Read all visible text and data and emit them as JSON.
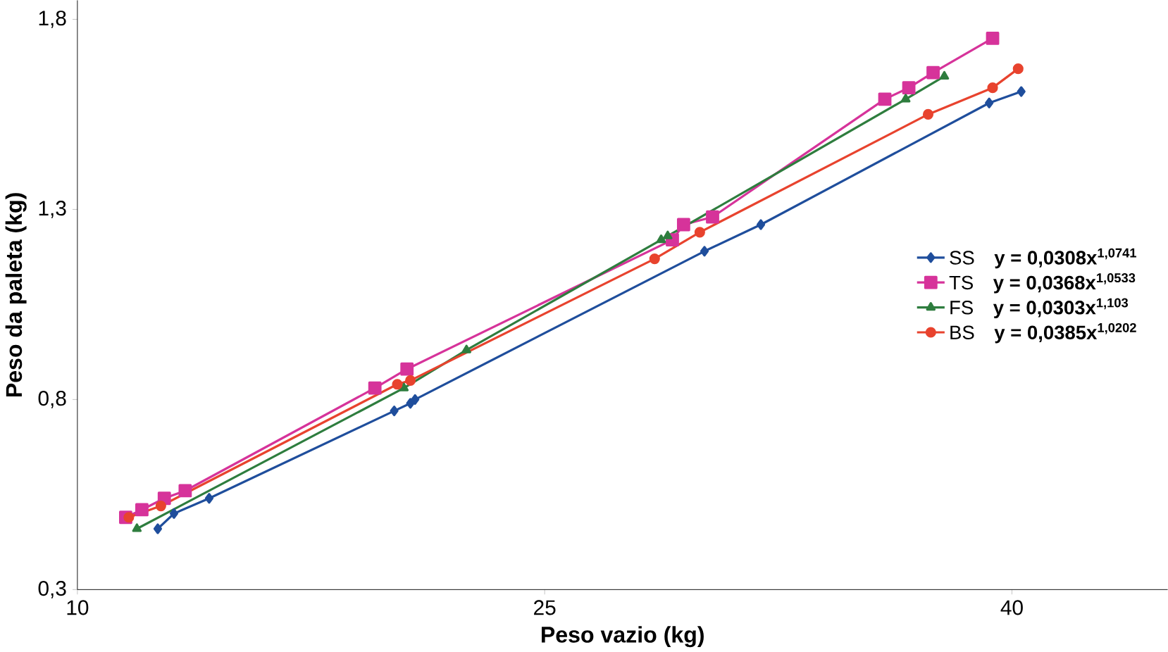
{
  "chart_data": {
    "type": "line",
    "xlabel": "Peso vazio (kg)",
    "ylabel": "Peso da paleta (kg)",
    "xlim": [
      10,
      45
    ],
    "ylim": [
      0.3,
      1.85
    ],
    "xticks": [
      10,
      25,
      40
    ],
    "yticks": [
      {
        "value": 0.3,
        "label": "0,3"
      },
      {
        "value": 0.8,
        "label": "0,8"
      },
      {
        "value": 1.3,
        "label": "1,3"
      },
      {
        "value": 1.8,
        "label": "1,8"
      }
    ],
    "grid": false,
    "legend": "right",
    "annotations": [
      "y = 0,0308x$^{1,0741}$",
      "y = 0,0368x$^{1,0533}$",
      "y = 0,0303x$^{1,103}$",
      "y = 0,0385x$^{1,0202}$"
    ],
    "series": [
      {
        "name": "SS",
        "color": "#1f4e9c",
        "marker": "diamond",
        "x": [
          12.58,
          13.1,
          14.23,
          20.17,
          20.69,
          20.84,
          30.13,
          31.94,
          39.27,
          40.3
        ],
        "values": [
          0.46,
          0.5,
          0.54,
          0.77,
          0.79,
          0.8,
          1.19,
          1.26,
          1.58,
          1.61
        ]
      },
      {
        "name": "TS",
        "color": "#d6339a",
        "marker": "square",
        "x": [
          11.55,
          12.07,
          12.79,
          13.46,
          19.55,
          20.58,
          29.1,
          29.46,
          30.39,
          35.92,
          36.69,
          37.47,
          39.38
        ],
        "values": [
          0.49,
          0.51,
          0.54,
          0.56,
          0.83,
          0.88,
          1.22,
          1.26,
          1.28,
          1.59,
          1.62,
          1.66,
          1.75
        ]
      },
      {
        "name": "FS",
        "color": "#2e7d3e",
        "marker": "triangle",
        "x": [
          11.91,
          20.48,
          22.49,
          28.74,
          28.95,
          36.59,
          37.83
        ],
        "values": [
          0.46,
          0.83,
          0.93,
          1.22,
          1.23,
          1.59,
          1.65
        ]
      },
      {
        "name": "BS",
        "color": "#e8432e",
        "marker": "circle",
        "x": [
          11.65,
          12.68,
          20.27,
          20.69,
          28.53,
          29.98,
          37.31,
          39.38,
          40.2
        ],
        "values": [
          0.49,
          0.52,
          0.84,
          0.85,
          1.17,
          1.24,
          1.55,
          1.62,
          1.67
        ]
      }
    ]
  }
}
